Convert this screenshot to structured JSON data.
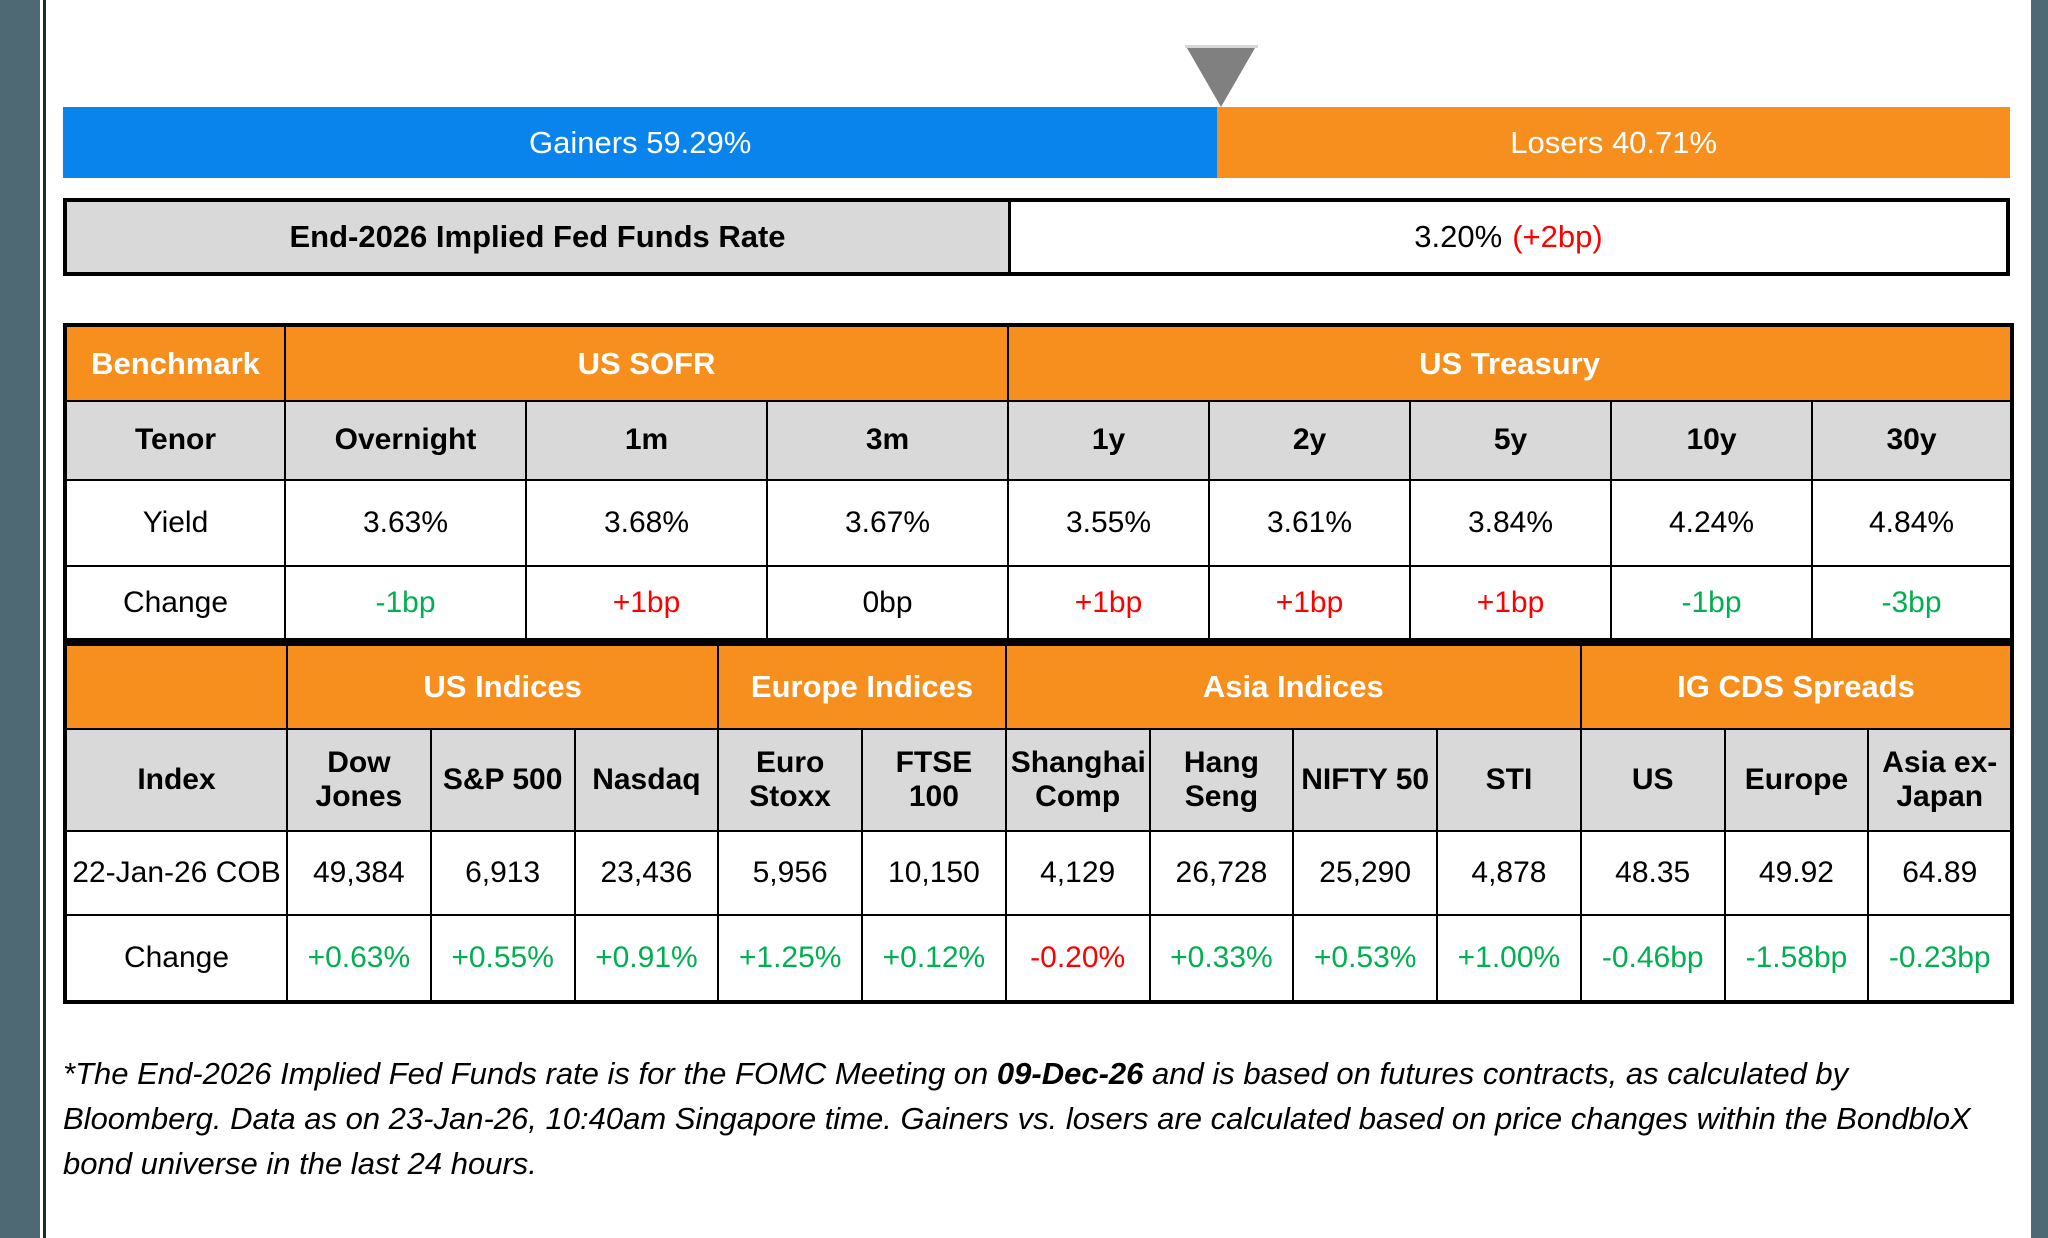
{
  "colors": {
    "gainers_blue": "#0A84ED",
    "losers_orange": "#F78F1E",
    "header_orange": "#F78F1E",
    "header_gray": "#D9D9D9",
    "positive_green": "#00B050",
    "negative_red": "#FF0000",
    "edge_slate": "#4E6973",
    "marker_gray": "#808080"
  },
  "gauge": {
    "gainers": {
      "label": "Gainers 59.29%",
      "pct": 59.29
    },
    "losers": {
      "label": "Losers 40.71%",
      "pct": 40.71
    },
    "marker_icon": "down-triangle"
  },
  "fed_funds": {
    "label": "End-2026 Implied Fed Funds Rate",
    "value": "3.20%",
    "change": "(+2bp)"
  },
  "benchmark_table": {
    "corner_label": "Benchmark",
    "groups": [
      {
        "label": "US SOFR",
        "span": 3
      },
      {
        "label": "US Treasury",
        "span": 5
      }
    ],
    "tenor_row": {
      "label": "Tenor",
      "cells": [
        "Overnight",
        "1m",
        "3m",
        "1y",
        "2y",
        "5y",
        "10y",
        "30y"
      ]
    },
    "yield_row": {
      "label": "Yield",
      "cells": [
        "3.63%",
        "3.68%",
        "3.67%",
        "3.55%",
        "3.61%",
        "3.84%",
        "4.24%",
        "4.84%"
      ]
    },
    "change_row": {
      "label": "Change",
      "cells": [
        {
          "text": "-1bp",
          "tone": "green"
        },
        {
          "text": "+1bp",
          "tone": "red"
        },
        {
          "text": "0bp",
          "tone": "black"
        },
        {
          "text": "+1bp",
          "tone": "red"
        },
        {
          "text": "+1bp",
          "tone": "red"
        },
        {
          "text": "+1bp",
          "tone": "red"
        },
        {
          "text": "-1bp",
          "tone": "green"
        },
        {
          "text": "-3bp",
          "tone": "green"
        }
      ]
    }
  },
  "indices_table": {
    "groups": [
      {
        "label": "US Indices",
        "span": 3
      },
      {
        "label": "Europe Indices",
        "span": 2
      },
      {
        "label": "Asia Indices",
        "span": 4
      },
      {
        "label": "IG CDS Spreads",
        "span": 3
      }
    ],
    "header_row": {
      "label": "Index",
      "cells": [
        "Dow Jones",
        "S&P 500",
        "Nasdaq",
        "Euro Stoxx",
        "FTSE 100",
        "Shanghai Comp",
        "Hang Seng",
        "NIFTY 50",
        "STI",
        "US",
        "Europe",
        "Asia ex-Japan"
      ]
    },
    "value_row": {
      "label": "22-Jan-26 COB",
      "cells": [
        "49,384",
        "6,913",
        "23,436",
        "5,956",
        "10,150",
        "4,129",
        "26,728",
        "25,290",
        "4,878",
        "48.35",
        "49.92",
        "64.89"
      ]
    },
    "change_row": {
      "label": "Change",
      "cells": [
        {
          "text": "+0.63%",
          "tone": "green"
        },
        {
          "text": "+0.55%",
          "tone": "green"
        },
        {
          "text": "+0.91%",
          "tone": "green"
        },
        {
          "text": "+1.25%",
          "tone": "green"
        },
        {
          "text": "+0.12%",
          "tone": "green"
        },
        {
          "text": "-0.20%",
          "tone": "red"
        },
        {
          "text": "+0.33%",
          "tone": "green"
        },
        {
          "text": "+0.53%",
          "tone": "green"
        },
        {
          "text": "+1.00%",
          "tone": "green"
        },
        {
          "text": "-0.46bp",
          "tone": "green"
        },
        {
          "text": "-1.58bp",
          "tone": "green"
        },
        {
          "text": "-0.23bp",
          "tone": "green"
        }
      ]
    }
  },
  "footnote": {
    "prefix": "*The End-2026 Implied Fed Funds rate is for the FOMC Meeting on ",
    "bold_date": "09-Dec-26",
    "suffix": " and is based on futures contracts, as calculated by Bloomberg. Data as on 23-Jan-26, 10:40am Singapore time. Gainers vs. losers are calculated based on price changes within the BondbloX bond universe in the last 24 hours."
  }
}
